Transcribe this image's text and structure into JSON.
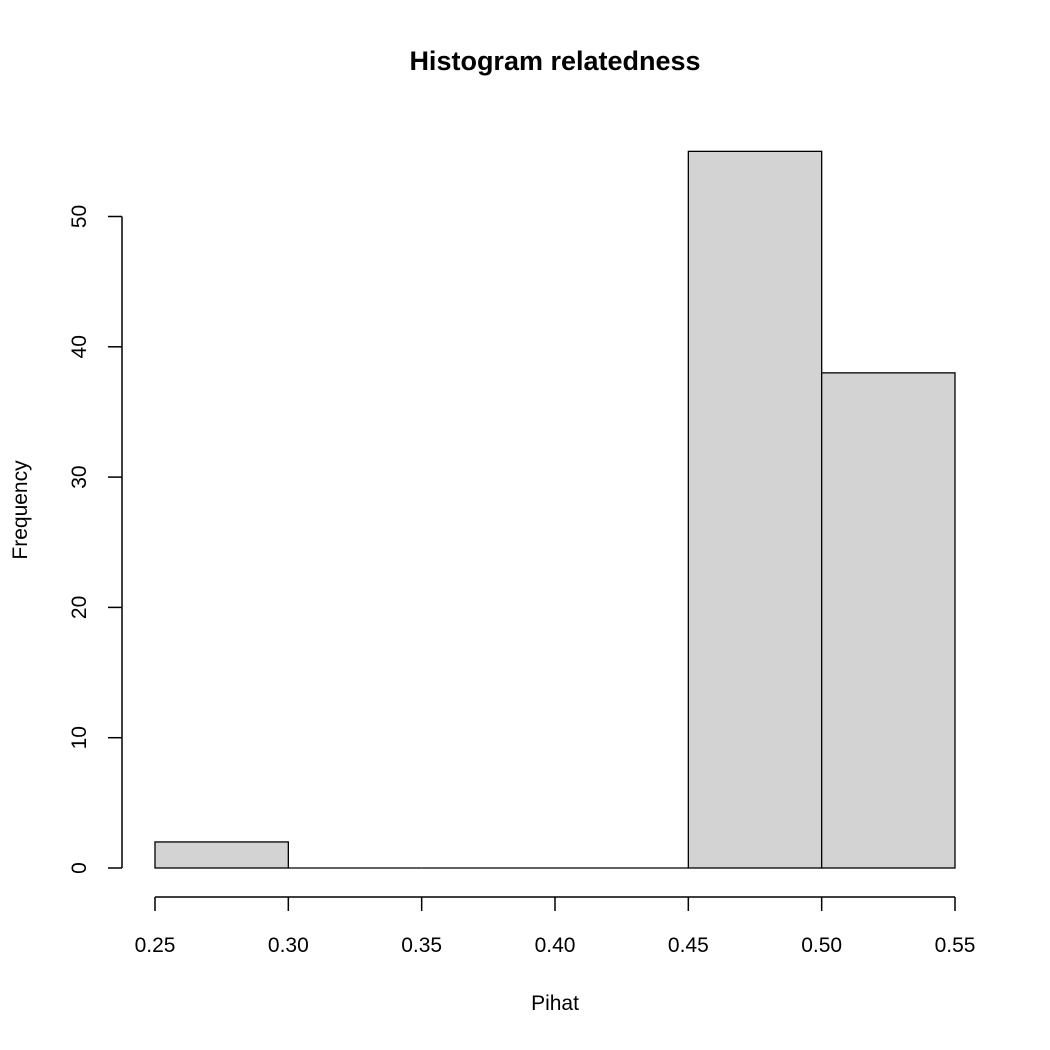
{
  "chart_data": {
    "type": "bar",
    "title": "Histogram relatedness",
    "xlabel": "Pihat",
    "ylabel": "Frequency",
    "bins": [
      {
        "from": 0.25,
        "to": 0.3,
        "count": 2
      },
      {
        "from": 0.3,
        "to": 0.35,
        "count": 0
      },
      {
        "from": 0.35,
        "to": 0.4,
        "count": 0
      },
      {
        "from": 0.4,
        "to": 0.45,
        "count": 0
      },
      {
        "from": 0.45,
        "to": 0.5,
        "count": 55
      },
      {
        "from": 0.5,
        "to": 0.55,
        "count": 38
      }
    ],
    "xlim": [
      0.25,
      0.55
    ],
    "ylim": [
      0,
      55
    ],
    "x_ticks": [
      0.25,
      0.3,
      0.35,
      0.4,
      0.45,
      0.5,
      0.55
    ],
    "x_tick_labels": [
      "0.25",
      "0.30",
      "0.35",
      "0.40",
      "0.45",
      "0.50",
      "0.55"
    ],
    "y_ticks": [
      0,
      10,
      20,
      30,
      40,
      50
    ],
    "y_tick_labels": [
      "0",
      "10",
      "20",
      "30",
      "40",
      "50"
    ],
    "grid": false,
    "bar_color": "#d3d3d3",
    "edge_color": "#000000"
  }
}
